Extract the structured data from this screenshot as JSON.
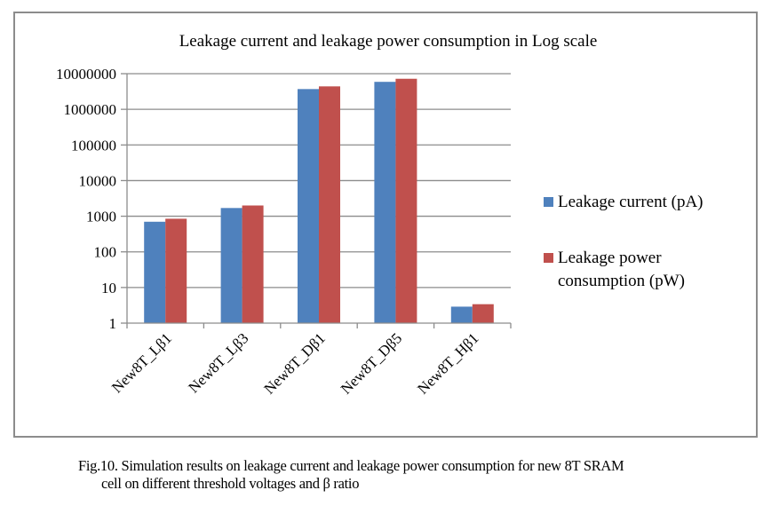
{
  "chart_data": {
    "type": "bar",
    "title": "Leakage current and leakage power consumption in Log scale",
    "xlabel": "",
    "ylabel": "",
    "yscale": "log",
    "ylim": [
      1,
      10000000
    ],
    "yticks": [
      "1",
      "10",
      "100",
      "1000",
      "10000",
      "100000",
      "1000000",
      "10000000"
    ],
    "grid": true,
    "legend_position": "right",
    "categories": [
      "New8T_Lβ1",
      "New8T_Lβ3",
      "New8T_Dβ1",
      "New8T_Dβ5",
      "New8T_Hβ1"
    ],
    "series": [
      {
        "name": "Leakage current (pA)",
        "color": "#4f81bd",
        "values": [
          700,
          1700,
          3700000,
          5900000,
          2.9
        ]
      },
      {
        "name": "Leakage power consumption (pW)",
        "color": "#c0504d",
        "legend_lines": [
          "Leakage power",
          "consumption (pW)"
        ],
        "values": [
          850,
          2000,
          4400000,
          7200000,
          3.4
        ]
      }
    ]
  },
  "caption": {
    "line1": "Fig.10. Simulation results on leakage current and leakage power consumption for new 8T SRAM",
    "line2": "cell on different threshold voltages and β ratio"
  }
}
